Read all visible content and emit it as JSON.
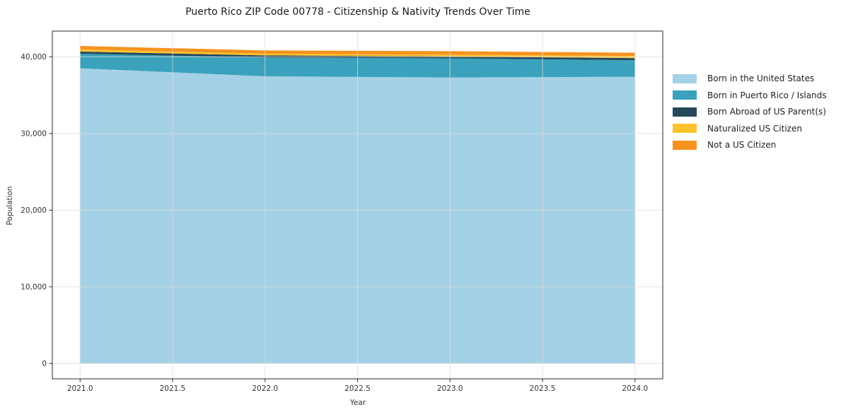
{
  "title": "Puerto Rico ZIP Code 00778 - Citizenship & Nativity Trends Over Time",
  "xlabel": "Year",
  "ylabel": "Population",
  "chart_data": {
    "type": "area",
    "stacked": true,
    "title": "Puerto Rico ZIP Code 00778 - Citizenship & Nativity Trends Over Time",
    "xlabel": "Year",
    "ylabel": "Population",
    "grid": true,
    "legend_position": "right",
    "x": [
      2021,
      2022,
      2023,
      2024
    ],
    "xlim": [
      2020.85,
      2024.15
    ],
    "ylim": [
      -2000,
      43350
    ],
    "x_ticks": [
      2021.0,
      2021.5,
      2022.0,
      2022.5,
      2023.0,
      2023.5,
      2024.0
    ],
    "x_tick_labels": [
      "2021.0",
      "2021.5",
      "2022.0",
      "2022.5",
      "2023.0",
      "2023.5",
      "2024.0"
    ],
    "y_ticks": [
      0,
      10000,
      20000,
      30000,
      40000
    ],
    "y_tick_labels": [
      "0",
      "10,000",
      "20,000",
      "30,000",
      "40,000"
    ],
    "series": [
      {
        "name": "Born in the United States",
        "color": "#a5d1e6",
        "values": [
          38500,
          37450,
          37300,
          37400
        ]
      },
      {
        "name": "Born in Puerto Rico / Islands",
        "color": "#3aa2bc",
        "values": [
          1900,
          2450,
          2500,
          2150
        ]
      },
      {
        "name": "Born Abroad of US Parent(s)",
        "color": "#25485a",
        "values": [
          280,
          280,
          250,
          280
        ]
      },
      {
        "name": "Naturalized US Citizen",
        "color": "#fcc32d",
        "values": [
          280,
          220,
          220,
          280
        ]
      },
      {
        "name": "Not a US Citizen",
        "color": "#f6921e",
        "values": [
          450,
          430,
          460,
          420
        ]
      }
    ]
  }
}
